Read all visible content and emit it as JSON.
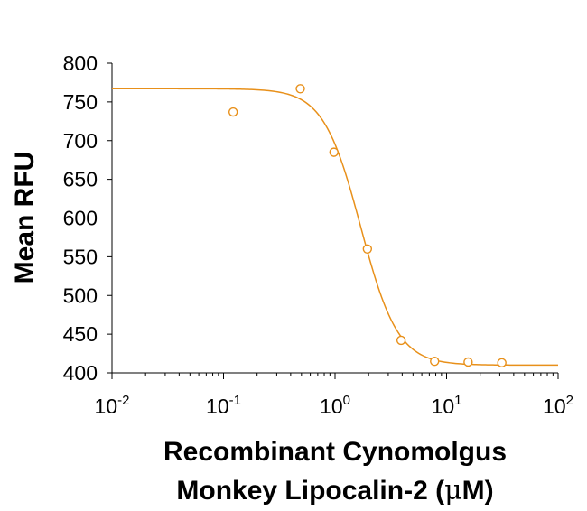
{
  "chart_data": {
    "type": "scatter",
    "title": "",
    "ylabel": "Mean RFU",
    "xlabel_line1": "Recombinant Cynomolgus",
    "xlabel_line2_prefix": "Monkey Lipocalin-2 (",
    "xlabel_mu": "μ",
    "xlabel_line2_suffix": "M)",
    "x_scale": "log",
    "xlim": [
      0.01,
      100
    ],
    "ylim": [
      400,
      800
    ],
    "x_ticks": [
      {
        "base": "10",
        "exp": "-2",
        "value": 0.01
      },
      {
        "base": "10",
        "exp": "-1",
        "value": 0.1
      },
      {
        "base": "10",
        "exp": "0",
        "value": 1
      },
      {
        "base": "10",
        "exp": "1",
        "value": 10
      },
      {
        "base": "10",
        "exp": "2",
        "value": 100
      }
    ],
    "y_ticks": [
      "400",
      "450",
      "500",
      "550",
      "600",
      "650",
      "700",
      "750",
      "800"
    ],
    "color": "#E8901A",
    "points": [
      {
        "x": 0.122,
        "y": 737
      },
      {
        "x": 0.488,
        "y": 767
      },
      {
        "x": 0.977,
        "y": 685
      },
      {
        "x": 1.95,
        "y": 560
      },
      {
        "x": 3.91,
        "y": 442
      },
      {
        "x": 7.81,
        "y": 415
      },
      {
        "x": 15.6,
        "y": 414
      },
      {
        "x": 31.3,
        "y": 413
      }
    ],
    "fit_curve": {
      "model": "4PL",
      "top": 767,
      "bottom": 410,
      "ec50": 1.7,
      "hill": 2.6
    },
    "grid": false,
    "legend": "none"
  }
}
